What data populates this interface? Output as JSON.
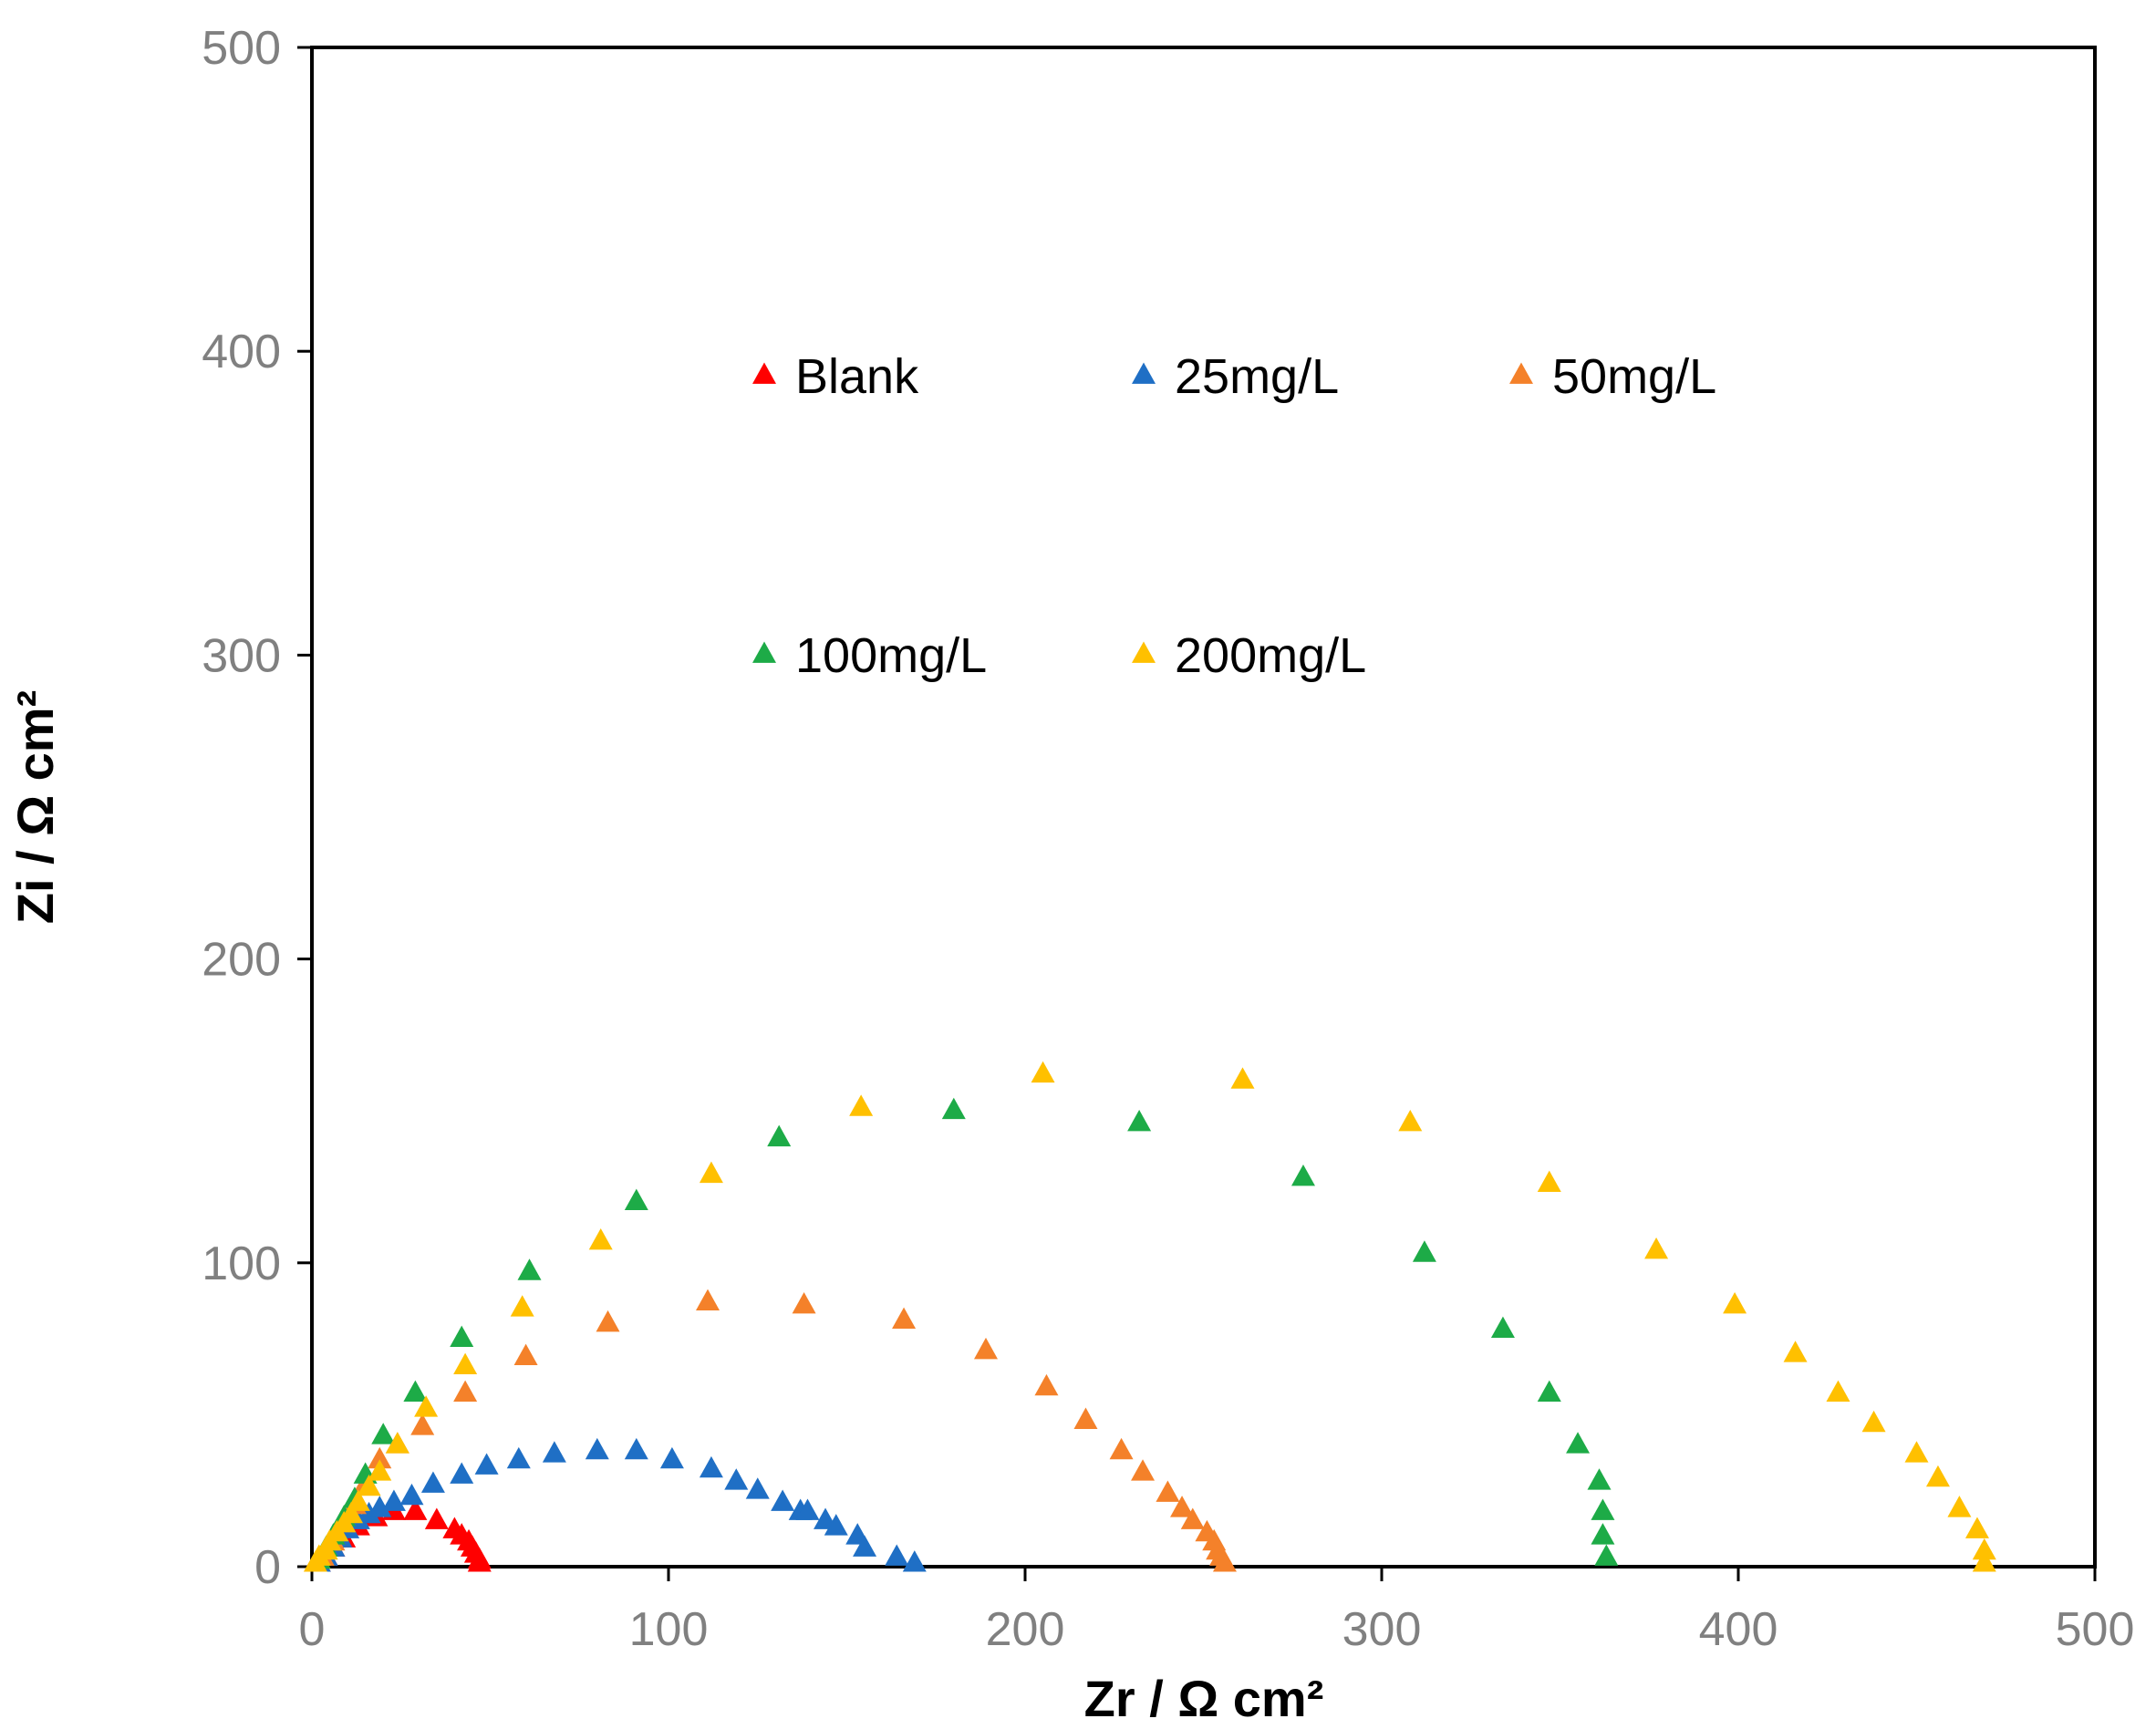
{
  "chart_data": {
    "type": "scatter",
    "title": "",
    "xlabel": "Zr / Ω cm²",
    "ylabel": "Zi / Ω cm²",
    "xlim": [
      0,
      500
    ],
    "ylim": [
      0,
      500
    ],
    "xticks": [
      "0",
      "100",
      "200",
      "300",
      "400",
      "500"
    ],
    "yticks": [
      "0",
      "100",
      "200",
      "300",
      "400",
      "500"
    ],
    "grid": false,
    "marker": "triangle",
    "legend_layout": "inside, two rows",
    "series": [
      {
        "name": "Blank",
        "color": "#FF0000",
        "points": [
          [
            2,
            1
          ],
          [
            4,
            3
          ],
          [
            6,
            6
          ],
          [
            9,
            9
          ],
          [
            13,
            13
          ],
          [
            18,
            16
          ],
          [
            23,
            18
          ],
          [
            29,
            18
          ],
          [
            35,
            15
          ],
          [
            40,
            12
          ],
          [
            42,
            10
          ],
          [
            44,
            8
          ],
          [
            45,
            6
          ],
          [
            46,
            4
          ],
          [
            47,
            2
          ],
          [
            47,
            1
          ]
        ]
      },
      {
        "name": "25mg/L",
        "color": "#1F6FC5",
        "points": [
          [
            2,
            1
          ],
          [
            4,
            3
          ],
          [
            6,
            6
          ],
          [
            8,
            9
          ],
          [
            10,
            12
          ],
          [
            13,
            15
          ],
          [
            16,
            17
          ],
          [
            19,
            19
          ],
          [
            23,
            21
          ],
          [
            28,
            23
          ],
          [
            34,
            27
          ],
          [
            42,
            30
          ],
          [
            49,
            33
          ],
          [
            58,
            35
          ],
          [
            68,
            37
          ],
          [
            80,
            38
          ],
          [
            91,
            38
          ],
          [
            101,
            35
          ],
          [
            112,
            32
          ],
          [
            119,
            28
          ],
          [
            125,
            25
          ],
          [
            132,
            21
          ],
          [
            137,
            18
          ],
          [
            139,
            18
          ],
          [
            144,
            15
          ],
          [
            147,
            13
          ],
          [
            153,
            10
          ],
          [
            155,
            6
          ],
          [
            164,
            3
          ],
          [
            169,
            1
          ]
        ]
      },
      {
        "name": "50mg/L",
        "color": "#F4812A",
        "points": [
          [
            3,
            3
          ],
          [
            6,
            8
          ],
          [
            9,
            14
          ],
          [
            12,
            20
          ],
          [
            15,
            27
          ],
          [
            19,
            35
          ],
          [
            24,
            40
          ],
          [
            31,
            46
          ],
          [
            43,
            57
          ],
          [
            60,
            69
          ],
          [
            83,
            80
          ],
          [
            111,
            87
          ],
          [
            138,
            86
          ],
          [
            166,
            81
          ],
          [
            189,
            71
          ],
          [
            206,
            59
          ],
          [
            217,
            48
          ],
          [
            227,
            38
          ],
          [
            233,
            31
          ],
          [
            240,
            24
          ],
          [
            244,
            19
          ],
          [
            247,
            15
          ],
          [
            251,
            11
          ],
          [
            253,
            8
          ],
          [
            254,
            5
          ],
          [
            255,
            3
          ],
          [
            256,
            1
          ]
        ]
      },
      {
        "name": "100mg/L",
        "color": "#1DAB47",
        "points": [
          [
            2,
            2
          ],
          [
            4,
            6
          ],
          [
            6,
            10
          ],
          [
            9,
            16
          ],
          [
            12,
            22
          ],
          [
            15,
            30
          ],
          [
            20,
            43
          ],
          [
            29,
            57
          ],
          [
            42,
            75
          ],
          [
            61,
            97
          ],
          [
            91,
            120
          ],
          [
            131,
            141
          ],
          [
            180,
            150
          ],
          [
            232,
            146
          ],
          [
            278,
            128
          ],
          [
            312,
            103
          ],
          [
            334,
            78
          ],
          [
            347,
            57
          ],
          [
            355,
            40
          ],
          [
            361,
            28
          ],
          [
            362,
            18
          ],
          [
            362,
            10
          ],
          [
            363,
            3
          ]
        ]
      },
      {
        "name": "200mg/L",
        "color": "#FFC000",
        "points": [
          [
            1,
            1
          ],
          [
            2,
            3
          ],
          [
            4,
            5
          ],
          [
            5,
            8
          ],
          [
            7,
            11
          ],
          [
            9,
            14
          ],
          [
            11,
            17
          ],
          [
            13,
            21
          ],
          [
            16,
            26
          ],
          [
            19,
            31
          ],
          [
            24,
            40
          ],
          [
            32,
            52
          ],
          [
            43,
            66
          ],
          [
            59,
            85
          ],
          [
            81,
            107
          ],
          [
            112,
            129
          ],
          [
            154,
            151
          ],
          [
            205,
            162
          ],
          [
            261,
            160
          ],
          [
            308,
            146
          ],
          [
            347,
            126
          ],
          [
            377,
            104
          ],
          [
            399,
            86
          ],
          [
            416,
            70
          ],
          [
            428,
            57
          ],
          [
            438,
            47
          ],
          [
            450,
            37
          ],
          [
            456,
            29
          ],
          [
            462,
            19
          ],
          [
            467,
            12
          ],
          [
            469,
            5
          ],
          [
            469,
            1
          ]
        ]
      }
    ]
  }
}
